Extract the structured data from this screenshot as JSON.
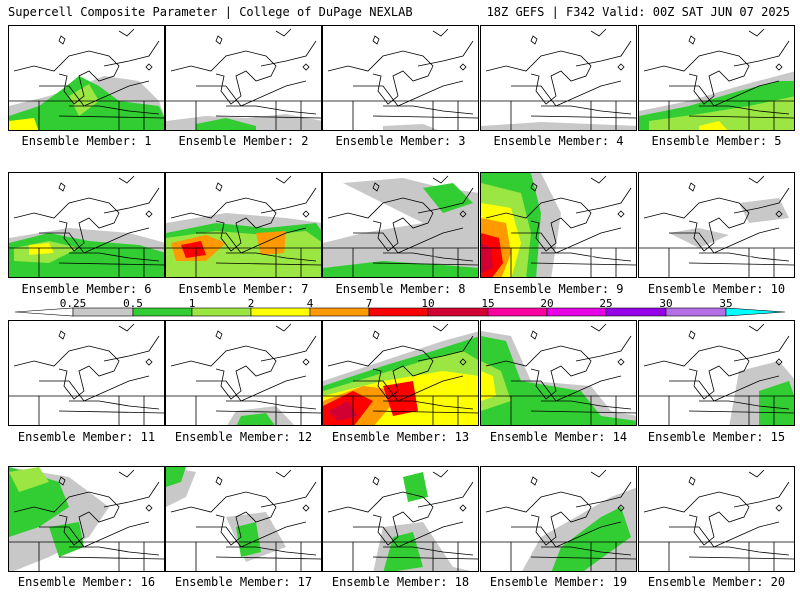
{
  "header": {
    "left": "Supercell Composite Parameter | College of DuPage NEXLAB",
    "right": "18Z GEFS | F342 Valid: 00Z SAT JUN 07 2025"
  },
  "panels": [
    {
      "label": "Ensemble Member: 1"
    },
    {
      "label": "Ensemble Member: 2"
    },
    {
      "label": "Ensemble Member: 3"
    },
    {
      "label": "Ensemble Member: 4"
    },
    {
      "label": "Ensemble Member: 5"
    },
    {
      "label": "Ensemble Member: 6"
    },
    {
      "label": "Ensemble Member: 7"
    },
    {
      "label": "Ensemble Member: 8"
    },
    {
      "label": "Ensemble Member: 9"
    },
    {
      "label": "Ensemble Member: 10"
    },
    {
      "label": "Ensemble Member: 11"
    },
    {
      "label": "Ensemble Member: 12"
    },
    {
      "label": "Ensemble Member: 13"
    },
    {
      "label": "Ensemble Member: 14"
    },
    {
      "label": "Ensemble Member: 15"
    },
    {
      "label": "Ensemble Member: 16"
    },
    {
      "label": "Ensemble Member: 17"
    },
    {
      "label": "Ensemble Member: 18"
    },
    {
      "label": "Ensemble Member: 19"
    },
    {
      "label": "Ensemble Member: 20"
    }
  ],
  "legend": {
    "labels": [
      "0.25",
      "0.5",
      "1",
      "2",
      "4",
      "7",
      "10",
      "15",
      "20",
      "25",
      "30",
      "35"
    ],
    "colors": [
      "#c8c8c8",
      "#32cd32",
      "#9be642",
      "#ffff00",
      "#ff9900",
      "#ff0000",
      "#d20032",
      "#ff00a0",
      "#e600e6",
      "#9600e6",
      "#b46ee6",
      "#00ffff"
    ]
  }
}
